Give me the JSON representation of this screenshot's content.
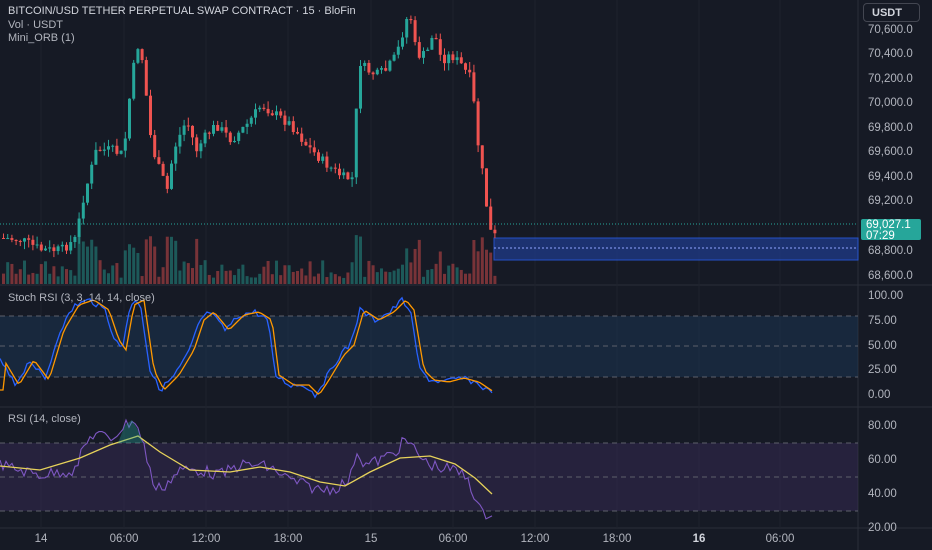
{
  "header": {
    "symbol_title": "BITCOIN/USD TETHER PERPETUAL SWAP CONTRACT · 15 · BloFin",
    "volume_label": "Vol · USDT",
    "indicator_label": "Mini_ORB (1)"
  },
  "currency_button": "USDT",
  "last_price": {
    "value": "69,027.1",
    "countdown": "07:29"
  },
  "colors": {
    "up": "#26a69a",
    "down": "#ef5350",
    "background": "#161a25",
    "orb_box": "#1e3a8a",
    "stoch_k": "#2962ff",
    "stoch_d": "#ff9800",
    "rsi_line": "#7e57c2",
    "rsi_ma": "#e6d25a"
  },
  "price_axis": {
    "labels": [
      "70,600.0",
      "70,400.0",
      "70,200.0",
      "70,000.0",
      "69,800.0",
      "69,600.0",
      "69,400.0",
      "69,200.0",
      "68,800.0",
      "68,600.0"
    ]
  },
  "stoch_rsi": {
    "title": "Stoch RSI (3, 3, 14, 14, close)",
    "axis": [
      "100.00",
      "75.00",
      "50.00",
      "25.00",
      "0.00"
    ]
  },
  "rsi": {
    "title": "RSI (14, close)",
    "axis": [
      "80.00",
      "60.00",
      "40.00",
      "20.00"
    ]
  },
  "time_axis": [
    {
      "label": "14",
      "bold": false
    },
    {
      "label": "06:00",
      "bold": false
    },
    {
      "label": "12:00",
      "bold": false
    },
    {
      "label": "18:00",
      "bold": false
    },
    {
      "label": "15",
      "bold": false
    },
    {
      "label": "06:00",
      "bold": false
    },
    {
      "label": "12:00",
      "bold": false
    },
    {
      "label": "18:00",
      "bold": false
    },
    {
      "label": "16",
      "bold": true
    },
    {
      "label": "06:00",
      "bold": false
    }
  ]
}
